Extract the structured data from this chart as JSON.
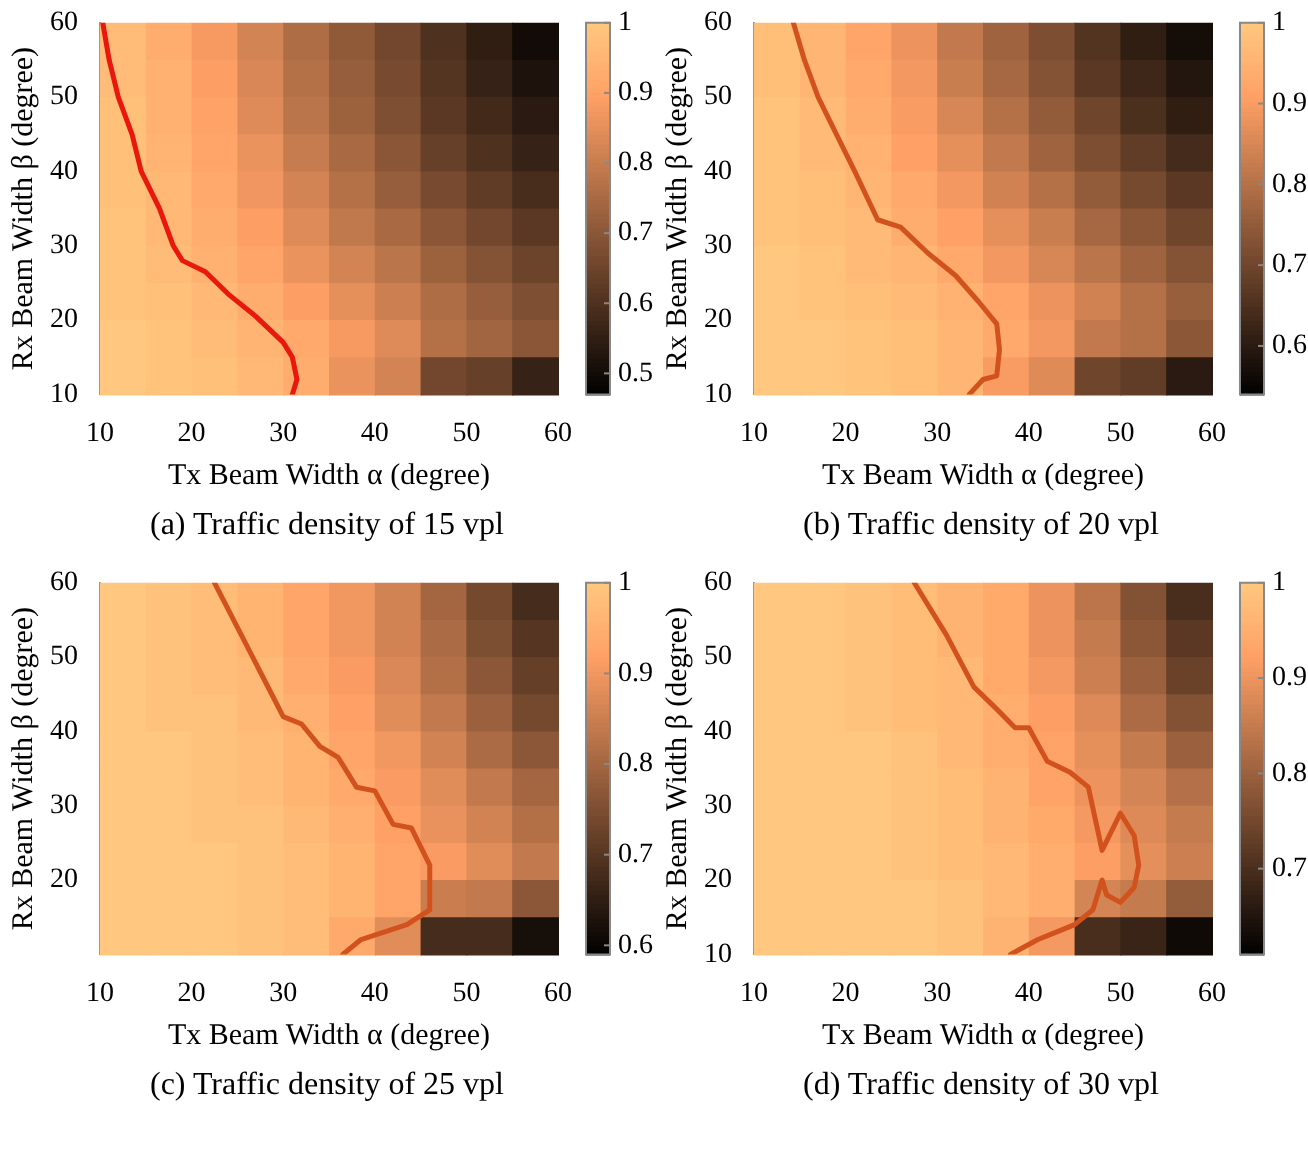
{
  "chart_data": [
    {
      "type": "heatmap",
      "title": "(a) Traffic density of 15 vpl",
      "xlabel": "Tx Beam Width α (degree)",
      "ylabel": "Rx Beam Width β (degree)",
      "xlim": [
        10,
        60
      ],
      "ylim": [
        10,
        60
      ],
      "xticks": [
        10,
        20,
        30,
        40,
        50,
        60
      ],
      "yticks": [
        10,
        20,
        30,
        40,
        50,
        60
      ],
      "clim": [
        0.47,
        1
      ],
      "cticks": [
        0.5,
        0.6,
        0.7,
        0.8,
        0.9,
        1
      ],
      "cells": [
        [
          0.97,
          0.93,
          0.88,
          0.82,
          0.76,
          0.71,
          0.66,
          0.6,
          0.55,
          0.5
        ],
        [
          0.97,
          0.94,
          0.89,
          0.83,
          0.77,
          0.72,
          0.67,
          0.61,
          0.56,
          0.52
        ],
        [
          0.98,
          0.94,
          0.9,
          0.84,
          0.78,
          0.73,
          0.68,
          0.62,
          0.58,
          0.54
        ],
        [
          0.98,
          0.95,
          0.91,
          0.86,
          0.8,
          0.75,
          0.7,
          0.64,
          0.6,
          0.56
        ],
        [
          0.98,
          0.96,
          0.92,
          0.87,
          0.82,
          0.77,
          0.72,
          0.67,
          0.63,
          0.59
        ],
        [
          0.99,
          0.96,
          0.93,
          0.89,
          0.84,
          0.79,
          0.75,
          0.7,
          0.66,
          0.62
        ],
        [
          0.99,
          0.97,
          0.94,
          0.91,
          0.86,
          0.82,
          0.78,
          0.73,
          0.69,
          0.65
        ],
        [
          0.99,
          0.98,
          0.96,
          0.93,
          0.89,
          0.85,
          0.81,
          0.76,
          0.72,
          0.68
        ],
        [
          1,
          0.99,
          0.97,
          0.95,
          0.92,
          0.88,
          0.84,
          0.77,
          0.74,
          0.7
        ],
        [
          1,
          0.99,
          0.98,
          0.96,
          0.93,
          0.86,
          0.82,
          0.66,
          0.64,
          0.56
        ]
      ],
      "series": [
        {
          "type": "line",
          "color": "#e8180c",
          "x": [
            10.3,
            11,
            12,
            13.5,
            14.5,
            16.5,
            18,
            19,
            21.5,
            24,
            27,
            30,
            31,
            31.5,
            31
          ],
          "values": [
            60,
            55,
            50,
            45,
            40,
            35,
            30,
            28,
            26.5,
            23.5,
            20.5,
            17,
            15,
            12,
            10
          ]
        }
      ]
    },
    {
      "type": "heatmap",
      "title": "(b) Traffic density of 20 vpl",
      "xlabel": "Tx Beam Width α (degree)",
      "ylabel": "Rx Beam Width β (degree)",
      "xlim": [
        10,
        60
      ],
      "ylim": [
        10,
        60
      ],
      "xticks": [
        10,
        20,
        30,
        40,
        50,
        60
      ],
      "yticks": [
        10,
        20,
        30,
        40,
        50,
        60
      ],
      "clim": [
        0.54,
        1
      ],
      "cticks": [
        0.6,
        0.7,
        0.8,
        0.9,
        1
      ],
      "cells": [
        [
          0.98,
          0.96,
          0.92,
          0.88,
          0.82,
          0.77,
          0.72,
          0.66,
          0.61,
          0.57
        ],
        [
          0.98,
          0.96,
          0.93,
          0.89,
          0.83,
          0.78,
          0.73,
          0.67,
          0.63,
          0.59
        ],
        [
          0.99,
          0.97,
          0.94,
          0.9,
          0.85,
          0.8,
          0.75,
          0.7,
          0.65,
          0.61
        ],
        [
          0.99,
          0.97,
          0.95,
          0.91,
          0.87,
          0.82,
          0.77,
          0.72,
          0.68,
          0.64
        ],
        [
          0.99,
          0.98,
          0.96,
          0.93,
          0.89,
          0.84,
          0.8,
          0.75,
          0.71,
          0.67
        ],
        [
          0.99,
          0.98,
          0.97,
          0.94,
          0.91,
          0.87,
          0.83,
          0.78,
          0.74,
          0.7
        ],
        [
          1,
          0.99,
          0.97,
          0.96,
          0.93,
          0.89,
          0.85,
          0.81,
          0.77,
          0.73
        ],
        [
          1,
          0.99,
          0.98,
          0.97,
          0.95,
          0.92,
          0.88,
          0.84,
          0.8,
          0.76
        ],
        [
          1,
          1,
          0.99,
          0.98,
          0.96,
          0.93,
          0.89,
          0.82,
          0.8,
          0.74
        ],
        [
          1,
          1,
          0.99,
          0.98,
          0.96,
          0.9,
          0.86,
          0.7,
          0.68,
          0.6
        ]
      ],
      "series": [
        {
          "type": "line",
          "color": "#d2521e",
          "x": [
            14.3,
            15.5,
            17,
            19,
            21,
            23.5,
            26,
            29,
            32,
            34.5,
            36.5,
            36.8,
            36.5,
            35,
            33.5
          ],
          "values": [
            60,
            55,
            50,
            45,
            40,
            33.5,
            32.5,
            29,
            26,
            22.5,
            19.5,
            16,
            12.5,
            12,
            10
          ]
        }
      ]
    },
    {
      "type": "heatmap",
      "title": "(c) Traffic density of 25 vpl",
      "xlabel": "Tx Beam Width α (degree)",
      "ylabel": "Rx Beam Width β (degree)",
      "xlim": [
        10,
        60
      ],
      "ylim": [
        10,
        60
      ],
      "xticks": [
        10,
        20,
        30,
        40,
        50,
        60
      ],
      "yticks": [
        20,
        30,
        40,
        50,
        60
      ],
      "clim": [
        0.59,
        1
      ],
      "cticks": [
        0.6,
        0.7,
        0.8,
        0.9,
        1
      ],
      "cells": [
        [
          1,
          0.99,
          0.98,
          0.96,
          0.93,
          0.9,
          0.86,
          0.8,
          0.74,
          0.68
        ],
        [
          1,
          0.99,
          0.98,
          0.96,
          0.93,
          0.9,
          0.86,
          0.81,
          0.75,
          0.7
        ],
        [
          1,
          0.99,
          0.98,
          0.97,
          0.94,
          0.91,
          0.87,
          0.82,
          0.77,
          0.72
        ],
        [
          1,
          0.99,
          0.99,
          0.97,
          0.95,
          0.92,
          0.88,
          0.84,
          0.79,
          0.74
        ],
        [
          1,
          1,
          0.99,
          0.98,
          0.96,
          0.93,
          0.9,
          0.86,
          0.81,
          0.77
        ],
        [
          1,
          1,
          0.99,
          0.98,
          0.96,
          0.94,
          0.91,
          0.88,
          0.84,
          0.8
        ],
        [
          1,
          1,
          0.99,
          0.99,
          0.97,
          0.95,
          0.92,
          0.89,
          0.86,
          0.82
        ],
        [
          1,
          1,
          1,
          0.99,
          0.98,
          0.96,
          0.93,
          0.91,
          0.88,
          0.84
        ],
        [
          1,
          1,
          1,
          0.99,
          0.98,
          0.96,
          0.93,
          0.85,
          0.84,
          0.77
        ],
        [
          1,
          1,
          1,
          0.99,
          0.98,
          0.94,
          0.88,
          0.68,
          0.68,
          0.62
        ]
      ],
      "series": [
        {
          "type": "line",
          "color": "#d2521e",
          "x": [
            22.5,
            25,
            27.5,
            30,
            32,
            34,
            36,
            38,
            40,
            42,
            44,
            46,
            46,
            43.5,
            41,
            38.5,
            36.5
          ],
          "values": [
            60,
            54,
            48,
            42,
            41,
            38,
            36.5,
            32.5,
            32,
            27.5,
            27,
            22,
            16,
            14,
            13,
            12,
            10
          ]
        }
      ]
    },
    {
      "type": "heatmap",
      "title": "(d) Traffic density of 30 vpl",
      "xlabel": "Tx Beam Width α (degree)",
      "ylabel": "Rx Beam Width β (degree)",
      "xlim": [
        10,
        60
      ],
      "ylim": [
        10,
        60
      ],
      "xticks": [
        10,
        20,
        30,
        40,
        50,
        60
      ],
      "yticks": [
        10,
        20,
        30,
        40,
        50,
        60
      ],
      "clim": [
        0.61,
        1
      ],
      "cticks": [
        0.7,
        0.8,
        0.9,
        1
      ],
      "cells": [
        [
          1,
          1,
          0.99,
          0.98,
          0.96,
          0.94,
          0.9,
          0.84,
          0.77,
          0.7
        ],
        [
          1,
          1,
          0.99,
          0.98,
          0.96,
          0.94,
          0.9,
          0.85,
          0.78,
          0.72
        ],
        [
          1,
          1,
          0.99,
          0.98,
          0.97,
          0.94,
          0.91,
          0.86,
          0.8,
          0.74
        ],
        [
          1,
          1,
          0.99,
          0.98,
          0.97,
          0.95,
          0.92,
          0.88,
          0.82,
          0.77
        ],
        [
          1,
          1,
          1,
          0.99,
          0.97,
          0.95,
          0.93,
          0.89,
          0.85,
          0.8
        ],
        [
          1,
          1,
          1,
          0.99,
          0.98,
          0.96,
          0.93,
          0.9,
          0.87,
          0.83
        ],
        [
          1,
          1,
          1,
          0.99,
          0.98,
          0.96,
          0.94,
          0.91,
          0.88,
          0.85
        ],
        [
          1,
          1,
          1,
          0.99,
          0.98,
          0.97,
          0.95,
          0.92,
          0.89,
          0.86
        ],
        [
          1,
          1,
          1,
          1,
          0.99,
          0.97,
          0.95,
          0.87,
          0.85,
          0.79
        ],
        [
          1,
          1,
          1,
          1,
          0.99,
          0.96,
          0.91,
          0.7,
          0.68,
          0.63
        ]
      ],
      "series": [
        {
          "type": "line",
          "color": "#d2521e",
          "x": [
            27.5,
            31,
            34,
            36.5,
            38.5,
            40,
            42,
            44.5,
            46.5,
            48,
            50,
            51.5,
            52,
            51.5,
            50,
            48.5,
            48,
            47,
            45,
            43,
            41,
            38
          ],
          "values": [
            60,
            53,
            46,
            43,
            40.5,
            40.5,
            36,
            34.5,
            32.5,
            24,
            29,
            26,
            22,
            19,
            17,
            18,
            20,
            16,
            14,
            13,
            12,
            10
          ]
        }
      ]
    }
  ]
}
